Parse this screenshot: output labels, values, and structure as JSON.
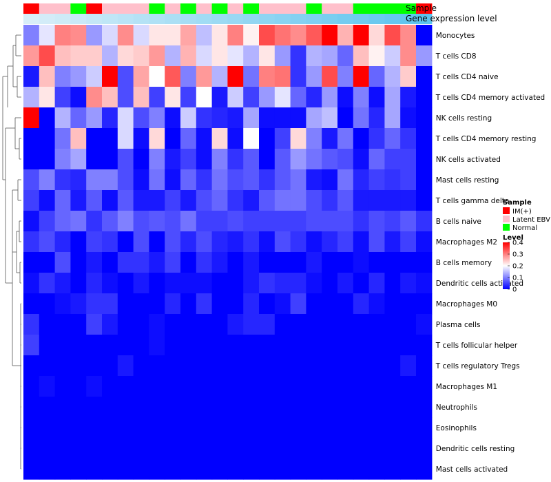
{
  "chart_data": {
    "type": "heatmap",
    "annotation_rows": [
      "Sample",
      "Gene expression level"
    ],
    "legend": {
      "sample_title": "Sample",
      "sample_items": [
        {
          "label": "IM(+)",
          "color": "#ff0000"
        },
        {
          "label": "Latent EBV",
          "color": "#ffc0cb"
        },
        {
          "label": "Normal",
          "color": "#00ff00"
        }
      ],
      "level_title": "Level",
      "level_ticks": [
        "0.4",
        "0.3",
        "0.2",
        "0.1",
        "0"
      ],
      "level_tick_values": [
        0.4,
        0.3,
        0.2,
        0.1,
        0
      ]
    },
    "color_scale": {
      "min": 0,
      "mid": 0.2,
      "max": 0.4,
      "low": "#0000ff",
      "midColor": "#ffffff",
      "high": "#ff0000"
    },
    "sample_groups": [
      "IM(+)",
      "Latent EBV",
      "Latent EBV",
      "Normal",
      "IM(+)",
      "Latent EBV",
      "Latent EBV",
      "Latent EBV",
      "Normal",
      "Latent EBV",
      "Normal",
      "Latent EBV",
      "Normal",
      "Latent EBV",
      "Normal",
      "Latent EBV",
      "Latent EBV",
      "Latent EBV",
      "Normal",
      "Latent EBV",
      "Latent EBV",
      "Normal",
      "Normal",
      "Normal",
      "Normal",
      "IM(+)"
    ],
    "gene_expression_level": [
      0.0,
      0.04,
      0.08,
      0.12,
      0.16,
      0.2,
      0.24,
      0.28,
      0.32,
      0.36,
      0.4,
      0.44,
      0.48,
      0.52,
      0.56,
      0.6,
      0.64,
      0.68,
      0.72,
      0.76,
      0.8,
      0.84,
      0.88,
      0.92,
      0.96,
      1.0
    ],
    "cell_types": [
      "Monocytes",
      "T cells CD8",
      "T cells CD4 naive",
      "T cells CD4 memory activated",
      "NK cells resting",
      "T cells CD4 memory resting",
      "NK cells activated",
      "Mast cells resting",
      "T cells gamma delta",
      "B cells naive",
      "Macrophages M2",
      "B cells memory",
      "Dendritic cells activated",
      "Macrophages M0",
      "Plasma cells",
      "T cells follicular helper",
      "T cells regulatory  Tregs",
      "Macrophages M1",
      "Neutrophils",
      "Eosinophils",
      "Dendritic cells resting",
      "Mast cells activated"
    ],
    "values": [
      [
        0.1,
        0.18,
        0.3,
        0.29,
        0.12,
        0.17,
        0.29,
        0.17,
        0.22,
        0.22,
        0.27,
        0.15,
        0.22,
        0.3,
        0.21,
        0.34,
        0.31,
        0.29,
        0.33,
        0.4,
        0.26,
        0.4,
        0.23,
        0.34,
        0.29,
        0.0
      ],
      [
        0.28,
        0.34,
        0.25,
        0.24,
        0.24,
        0.14,
        0.23,
        0.24,
        0.28,
        0.14,
        0.26,
        0.17,
        0.22,
        0.18,
        0.14,
        0.22,
        0.12,
        0.04,
        0.14,
        0.13,
        0.08,
        0.25,
        0.21,
        0.16,
        0.29,
        0.12
      ],
      [
        0.02,
        0.25,
        0.1,
        0.12,
        0.16,
        0.4,
        0.06,
        0.27,
        0.2,
        0.33,
        0.1,
        0.28,
        0.14,
        0.4,
        0.09,
        0.3,
        0.31,
        0.04,
        0.12,
        0.34,
        0.1,
        0.4,
        0.08,
        0.14,
        0.24,
        0.0
      ],
      [
        0.14,
        0.22,
        0.05,
        0.01,
        0.29,
        0.25,
        0.06,
        0.25,
        0.05,
        0.22,
        0.05,
        0.2,
        0.02,
        0.16,
        0.05,
        0.12,
        0.18,
        0.08,
        0.03,
        0.12,
        0.01,
        0.1,
        0.01,
        0.13,
        0.02,
        0.0
      ],
      [
        0.4,
        0.0,
        0.14,
        0.08,
        0.12,
        0.03,
        0.17,
        0.06,
        0.1,
        0.01,
        0.16,
        0.04,
        0.03,
        0.02,
        0.13,
        0.01,
        0.01,
        0.01,
        0.13,
        0.15,
        0.0,
        0.09,
        0.03,
        0.13,
        0.01,
        0.0
      ],
      [
        0.0,
        0.0,
        0.09,
        0.25,
        0.0,
        0.0,
        0.17,
        0.01,
        0.23,
        0.0,
        0.08,
        0.01,
        0.23,
        0.01,
        0.2,
        0.0,
        0.05,
        0.23,
        0.1,
        0.02,
        0.09,
        0.0,
        0.04,
        0.08,
        0.04,
        0.0
      ],
      [
        0.0,
        0.0,
        0.1,
        0.13,
        0.0,
        0.0,
        0.06,
        0.0,
        0.1,
        0.02,
        0.05,
        0.01,
        0.1,
        0.04,
        0.07,
        0.0,
        0.07,
        0.12,
        0.09,
        0.07,
        0.06,
        0.01,
        0.08,
        0.05,
        0.05,
        0.0
      ],
      [
        0.06,
        0.1,
        0.04,
        0.03,
        0.1,
        0.1,
        0.06,
        0.01,
        0.09,
        0.01,
        0.08,
        0.04,
        0.09,
        0.06,
        0.07,
        0.04,
        0.07,
        0.09,
        0.02,
        0.01,
        0.09,
        0.03,
        0.05,
        0.04,
        0.05,
        0.0
      ],
      [
        0.05,
        0.01,
        0.08,
        0.02,
        0.07,
        0.01,
        0.07,
        0.02,
        0.02,
        0.05,
        0.02,
        0.06,
        0.08,
        0.04,
        0.02,
        0.07,
        0.09,
        0.09,
        0.06,
        0.04,
        0.07,
        0.02,
        0.02,
        0.02,
        0.02,
        0.0
      ],
      [
        0.01,
        0.05,
        0.08,
        0.09,
        0.04,
        0.07,
        0.1,
        0.06,
        0.07,
        0.06,
        0.09,
        0.05,
        0.05,
        0.06,
        0.05,
        0.05,
        0.05,
        0.05,
        0.06,
        0.06,
        0.06,
        0.04,
        0.06,
        0.05,
        0.07,
        0.04
      ],
      [
        0.04,
        0.06,
        0.03,
        0.0,
        0.05,
        0.04,
        0.0,
        0.06,
        0.0,
        0.06,
        0.03,
        0.06,
        0.03,
        0.02,
        0.04,
        0.01,
        0.06,
        0.04,
        0.01,
        0.03,
        0.05,
        0.01,
        0.06,
        0.02,
        0.05,
        0.01
      ],
      [
        0.0,
        0.0,
        0.06,
        0.0,
        0.02,
        0.0,
        0.04,
        0.04,
        0.02,
        0.05,
        0.0,
        0.04,
        0.02,
        0.0,
        0.02,
        0.0,
        0.0,
        0.0,
        0.02,
        0.0,
        0.0,
        0.01,
        0.0,
        0.0,
        0.0,
        0.0
      ],
      [
        0.01,
        0.04,
        0.02,
        0.0,
        0.03,
        0.01,
        0.0,
        0.02,
        0.0,
        0.01,
        0.01,
        0.01,
        0.0,
        0.0,
        0.02,
        0.04,
        0.03,
        0.03,
        0.01,
        0.0,
        0.02,
        0.0,
        0.03,
        0.0,
        0.02,
        0.01
      ],
      [
        0.0,
        0.0,
        0.01,
        0.02,
        0.04,
        0.04,
        0.0,
        0.0,
        0.0,
        0.03,
        0.0,
        0.04,
        0.0,
        0.0,
        0.03,
        0.0,
        0.01,
        0.05,
        0.0,
        0.0,
        0.0,
        0.03,
        0.01,
        0.0,
        0.0,
        0.0
      ],
      [
        0.04,
        0.0,
        0.0,
        0.0,
        0.05,
        0.02,
        0.0,
        0.0,
        0.01,
        0.0,
        0.0,
        0.0,
        0.0,
        0.02,
        0.03,
        0.03,
        0.0,
        0.0,
        0.0,
        0.0,
        0.0,
        0.0,
        0.0,
        0.0,
        0.0,
        0.01
      ],
      [
        0.05,
        0.0,
        0.0,
        0.0,
        0.0,
        0.0,
        0.0,
        0.0,
        0.01,
        0.0,
        0.0,
        0.0,
        0.0,
        0.0,
        0.0,
        0.0,
        0.0,
        0.0,
        0.0,
        0.0,
        0.0,
        0.0,
        0.0,
        0.0,
        0.0,
        0.0
      ],
      [
        0.0,
        0.0,
        0.0,
        0.0,
        0.0,
        0.0,
        0.02,
        0.0,
        0.0,
        0.0,
        0.0,
        0.0,
        0.0,
        0.0,
        0.0,
        0.0,
        0.0,
        0.0,
        0.0,
        0.0,
        0.0,
        0.0,
        0.0,
        0.0,
        0.02,
        0.0
      ],
      [
        0.0,
        0.01,
        0.0,
        0.0,
        0.01,
        0.0,
        0.0,
        0.0,
        0.0,
        0.0,
        0.0,
        0.0,
        0.0,
        0.0,
        0.0,
        0.0,
        0.0,
        0.0,
        0.0,
        0.0,
        0.0,
        0.0,
        0.0,
        0.0,
        0.0,
        0.0
      ],
      [
        0,
        0,
        0,
        0,
        0,
        0,
        0,
        0,
        0,
        0,
        0,
        0,
        0,
        0,
        0,
        0,
        0,
        0,
        0,
        0,
        0,
        0,
        0,
        0,
        0,
        0
      ],
      [
        0,
        0,
        0,
        0,
        0,
        0,
        0,
        0,
        0,
        0,
        0,
        0,
        0,
        0,
        0,
        0,
        0,
        0,
        0,
        0,
        0,
        0,
        0,
        0,
        0,
        0
      ],
      [
        0,
        0,
        0,
        0,
        0,
        0,
        0,
        0,
        0,
        0,
        0,
        0,
        0,
        0,
        0,
        0,
        0,
        0,
        0,
        0,
        0,
        0,
        0,
        0,
        0,
        0
      ],
      [
        0,
        0,
        0,
        0,
        0,
        0,
        0,
        0,
        0,
        0,
        0,
        0,
        0,
        0,
        0,
        0,
        0,
        0,
        0,
        0,
        0,
        0,
        0,
        0,
        0,
        0
      ]
    ]
  }
}
